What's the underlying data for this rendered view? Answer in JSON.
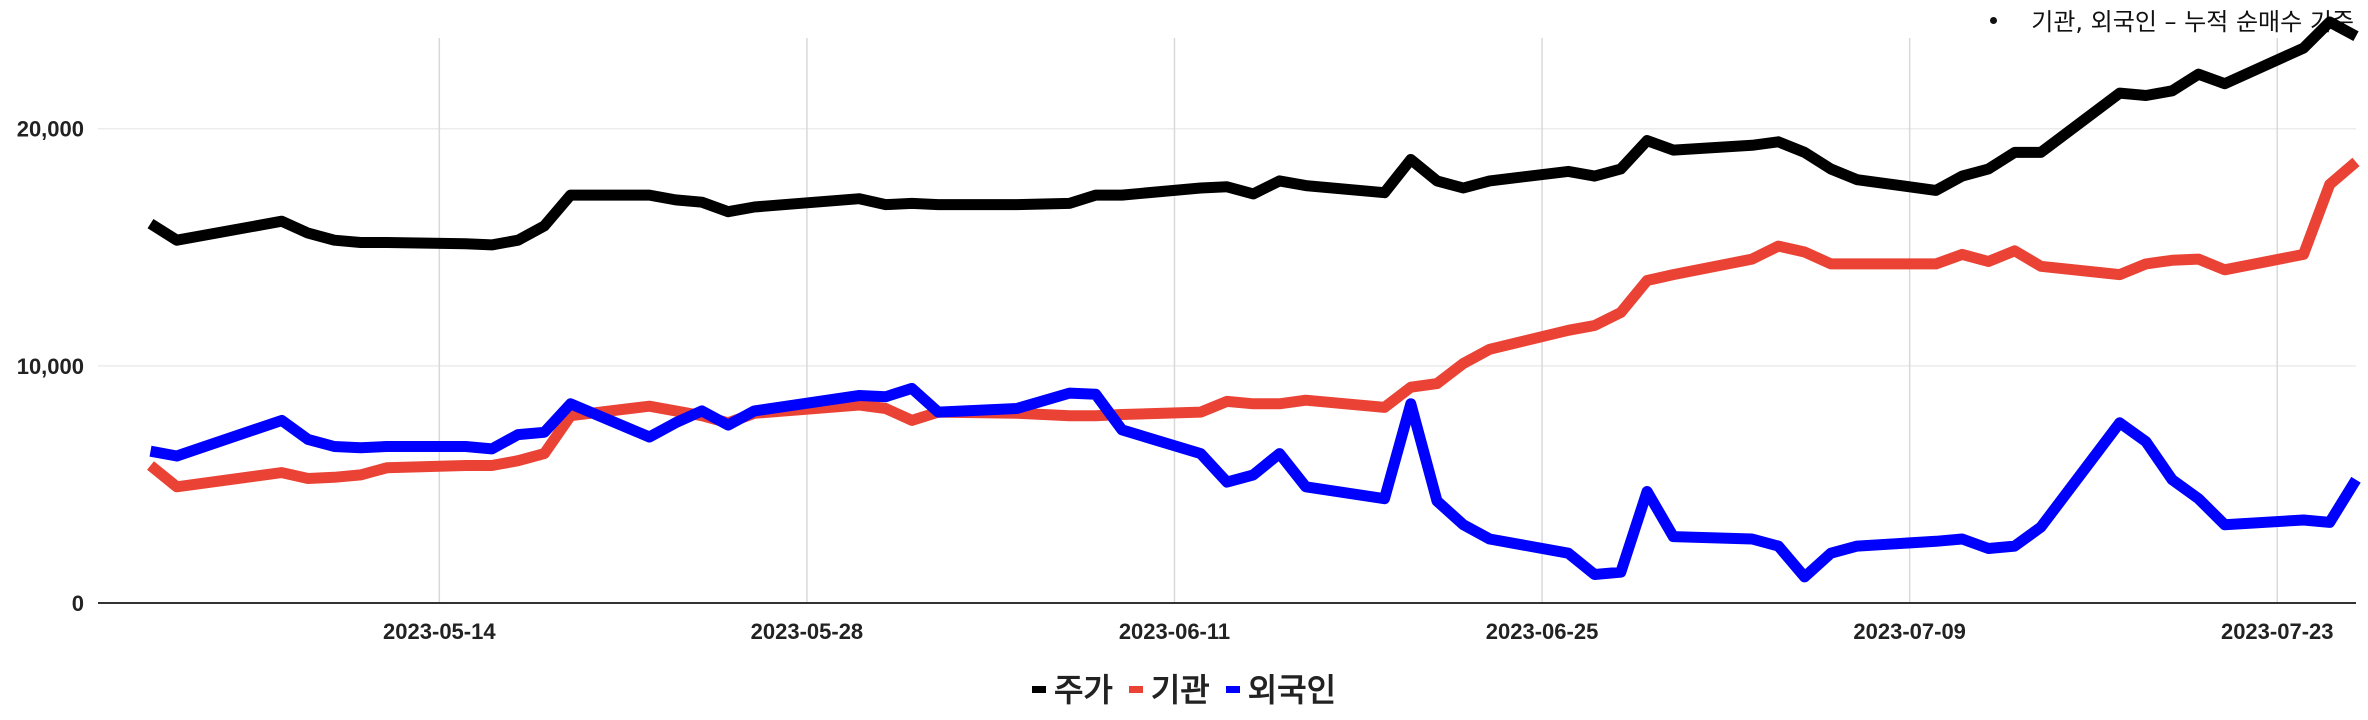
{
  "note": {
    "text": "기관, 외국인 – 누적 순매수 기준"
  },
  "colors": {
    "price": "#000000",
    "institution": "#ea4335",
    "foreign": "#0000ff",
    "grid": "#d9d9d9",
    "axis": "#333333"
  },
  "chart_data": {
    "type": "line",
    "title": "",
    "xlabel": "",
    "ylabel": "",
    "xlim": [
      "2023-05-01",
      "2023-07-26"
    ],
    "ylim": [
      0,
      24500
    ],
    "y_ticks": [
      {
        "value": 0,
        "label": "0"
      },
      {
        "value": 10000,
        "label": "10,000"
      },
      {
        "value": 20000,
        "label": "20,000"
      }
    ],
    "x_ticks": [
      {
        "value": "2023-05-14",
        "label": "2023-05-14"
      },
      {
        "value": "2023-05-28",
        "label": "2023-05-28"
      },
      {
        "value": "2023-06-11",
        "label": "2023-06-11"
      },
      {
        "value": "2023-06-25",
        "label": "2023-06-25"
      },
      {
        "value": "2023-07-09",
        "label": "2023-07-09"
      },
      {
        "value": "2023-07-23",
        "label": "2023-07-23"
      }
    ],
    "grid": {
      "vertical": true,
      "horizontal": true
    },
    "legend_position": "bottom",
    "x": [
      "2023-05-03",
      "2023-05-04",
      "2023-05-08",
      "2023-05-09",
      "2023-05-10",
      "2023-05-11",
      "2023-05-12",
      "2023-05-15",
      "2023-05-16",
      "2023-05-17",
      "2023-05-18",
      "2023-05-19",
      "2023-05-22",
      "2023-05-23",
      "2023-05-24",
      "2023-05-25",
      "2023-05-26",
      "2023-05-30",
      "2023-05-31",
      "2023-06-01",
      "2023-06-02",
      "2023-06-05",
      "2023-06-07",
      "2023-06-08",
      "2023-06-09",
      "2023-06-12",
      "2023-06-13",
      "2023-06-14",
      "2023-06-15",
      "2023-06-16",
      "2023-06-19",
      "2023-06-20",
      "2023-06-21",
      "2023-06-22",
      "2023-06-23",
      "2023-06-26",
      "2023-06-27",
      "2023-06-28",
      "2023-06-29",
      "2023-06-30",
      "2023-07-03",
      "2023-07-04",
      "2023-07-05",
      "2023-07-06",
      "2023-07-07",
      "2023-07-10",
      "2023-07-11",
      "2023-07-12",
      "2023-07-13",
      "2023-07-14",
      "2023-07-17",
      "2023-07-18",
      "2023-07-19",
      "2023-07-20",
      "2023-07-21",
      "2023-07-24",
      "2023-07-25",
      "2023-07-26"
    ],
    "series": [
      {
        "name": "주가",
        "color": "#000000",
        "values": [
          16000,
          15300,
          16100,
          15600,
          15300,
          15200,
          15200,
          15150,
          15100,
          15300,
          15900,
          17200,
          17200,
          17000,
          16900,
          16500,
          16700,
          17050,
          16800,
          16850,
          16800,
          16800,
          16850,
          17200,
          17200,
          17500,
          17550,
          17250,
          17800,
          17600,
          17300,
          18700,
          17800,
          17500,
          17800,
          18200,
          18000,
          18300,
          19500,
          19100,
          19300,
          19450,
          19000,
          18300,
          17850,
          17400,
          18000,
          18300,
          19000,
          19000,
          21500,
          21400,
          21600,
          22300,
          21900,
          23400,
          24500,
          23900
        ]
      },
      {
        "name": "기관",
        "color": "#ea4335",
        "values": [
          5800,
          4900,
          5500,
          5250,
          5300,
          5400,
          5700,
          5800,
          5800,
          6000,
          6300,
          7900,
          8300,
          8100,
          7900,
          7600,
          8000,
          8350,
          8200,
          7700,
          8050,
          8000,
          7900,
          7900,
          7950,
          8050,
          8500,
          8400,
          8400,
          8550,
          8250,
          9100,
          9250,
          10100,
          10700,
          11500,
          11700,
          12250,
          13600,
          13850,
          14500,
          15050,
          14800,
          14300,
          14300,
          14300,
          14700,
          14400,
          14850,
          14200,
          13850,
          14300,
          14450,
          14500,
          14050,
          14700,
          17650,
          18600
        ]
      },
      {
        "name": "외국인",
        "color": "#0000ff",
        "values": [
          6400,
          6200,
          7700,
          6900,
          6600,
          6550,
          6600,
          6600,
          6500,
          7100,
          7200,
          8400,
          7000,
          7600,
          8100,
          7500,
          8100,
          8750,
          8700,
          9050,
          8050,
          8200,
          8850,
          8800,
          7300,
          6300,
          5100,
          5400,
          6300,
          4900,
          4400,
          8400,
          4300,
          3300,
          2700,
          2100,
          1200,
          1300,
          4700,
          2800,
          2700,
          2400,
          1100,
          2100,
          2400,
          2600,
          2700,
          2300,
          2400,
          3200,
          7600,
          6800,
          5200,
          4400,
          3300,
          3500,
          3400,
          5200
        ]
      }
    ]
  }
}
